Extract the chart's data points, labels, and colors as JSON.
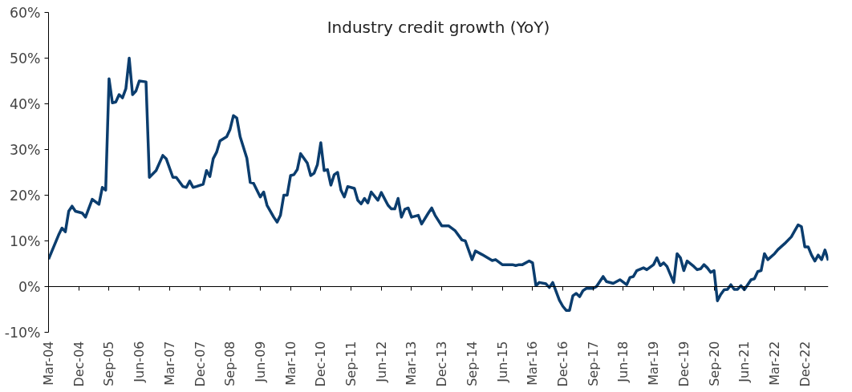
{
  "chart_data": {
    "type": "line",
    "title": "Industry credit growth (YoY)",
    "x": [
      "2004-03",
      "2004-06",
      "2004-07",
      "2004-08",
      "2004-09",
      "2004-10",
      "2004-11",
      "2005-01",
      "2005-02",
      "2005-04",
      "2005-06",
      "2005-07",
      "2005-08",
      "2005-09",
      "2005-10",
      "2005-11",
      "2005-12",
      "2006-01",
      "2006-02",
      "2006-03",
      "2006-04",
      "2006-05",
      "2006-06",
      "2006-08",
      "2006-09",
      "2006-11",
      "2007-01",
      "2007-02",
      "2007-04",
      "2007-05",
      "2007-07",
      "2007-08",
      "2007-09",
      "2007-10",
      "2007-11",
      "2008-01",
      "2008-02",
      "2008-03",
      "2008-04",
      "2008-05",
      "2008-06",
      "2008-08",
      "2008-09",
      "2008-10",
      "2008-11",
      "2008-12",
      "2009-02",
      "2009-03",
      "2009-04",
      "2009-06",
      "2009-07",
      "2009-08",
      "2009-10",
      "2009-11",
      "2009-12",
      "2010-01",
      "2010-02",
      "2010-03",
      "2010-04",
      "2010-05",
      "2010-06",
      "2010-08",
      "2010-09",
      "2010-10",
      "2010-11",
      "2010-12",
      "2011-01",
      "2011-02",
      "2011-03",
      "2011-04",
      "2011-05",
      "2011-06",
      "2011-07",
      "2011-08",
      "2011-10",
      "2011-11",
      "2011-12",
      "2012-01",
      "2012-02",
      "2012-03",
      "2012-05",
      "2012-06",
      "2012-08",
      "2012-09",
      "2012-10",
      "2012-11",
      "2012-12",
      "2013-01",
      "2013-02",
      "2013-03",
      "2013-05",
      "2013-06",
      "2013-08",
      "2013-09",
      "2013-10",
      "2013-12",
      "2014-02",
      "2014-04",
      "2014-06",
      "2014-07",
      "2014-09",
      "2014-10",
      "2014-12",
      "2015-03",
      "2015-04",
      "2015-06",
      "2015-09",
      "2015-10",
      "2015-11",
      "2015-12",
      "2016-02",
      "2016-03",
      "2016-04",
      "2016-05",
      "2016-07",
      "2016-08",
      "2016-09",
      "2016-11",
      "2016-12",
      "2017-01",
      "2017-02",
      "2017-03",
      "2017-04",
      "2017-05",
      "2017-06",
      "2017-07",
      "2017-09",
      "2017-10",
      "2017-12",
      "2018-01",
      "2018-03",
      "2018-05",
      "2018-07",
      "2018-08",
      "2018-09",
      "2018-10",
      "2018-12",
      "2019-01",
      "2019-03",
      "2019-04",
      "2019-05",
      "2019-06",
      "2019-07",
      "2019-09",
      "2019-10",
      "2019-11",
      "2019-12",
      "2020-01",
      "2020-03",
      "2020-04",
      "2020-05",
      "2020-06",
      "2020-07",
      "2020-08",
      "2020-09",
      "2020-10",
      "2020-11",
      "2020-12",
      "2021-01",
      "2021-02",
      "2021-03",
      "2021-04",
      "2021-05",
      "2021-06",
      "2021-07",
      "2021-08",
      "2021-09",
      "2021-10",
      "2021-11",
      "2021-12",
      "2022-01",
      "2022-03",
      "2022-04",
      "2022-06",
      "2022-08",
      "2022-09",
      "2022-10",
      "2022-11",
      "2022-12",
      "2023-01",
      "2023-02",
      "2023-03",
      "2023-04",
      "2023-05",
      "2023-06",
      "2023-07"
    ],
    "series": [
      {
        "color": "#0b3d6e",
        "values": [
          6.0,
          11.3,
          12.8,
          12.0,
          16.5,
          17.6,
          16.5,
          16.1,
          15.2,
          19.1,
          18.0,
          21.7,
          21.1,
          45.5,
          40.2,
          40.4,
          42.0,
          41.3,
          43.3,
          50.0,
          42.0,
          42.8,
          45.0,
          44.8,
          23.9,
          25.4,
          28.7,
          28.0,
          23.9,
          23.9,
          21.9,
          21.7,
          23.1,
          21.7,
          21.9,
          22.4,
          25.4,
          24.1,
          28.0,
          29.4,
          31.9,
          32.8,
          34.4,
          37.4,
          36.9,
          32.8,
          28.1,
          22.8,
          22.6,
          19.6,
          20.7,
          17.8,
          15.2,
          14.1,
          15.6,
          20.0,
          20.0,
          24.3,
          24.5,
          25.6,
          29.1,
          27.0,
          24.3,
          24.8,
          26.7,
          31.5,
          25.4,
          25.6,
          22.2,
          24.5,
          25.0,
          21.1,
          19.6,
          21.9,
          21.5,
          18.9,
          18.1,
          19.3,
          18.3,
          20.7,
          18.9,
          20.6,
          17.8,
          17.0,
          17.0,
          19.3,
          15.2,
          16.9,
          17.2,
          15.2,
          15.6,
          13.7,
          16.1,
          17.2,
          15.6,
          13.3,
          13.3,
          12.2,
          10.2,
          10.0,
          5.9,
          7.8,
          7.0,
          5.7,
          5.9,
          4.8,
          4.8,
          4.6,
          4.8,
          4.8,
          5.6,
          5.2,
          0.2,
          0.9,
          0.6,
          -0.2,
          0.9,
          -3.0,
          -4.3,
          -5.2,
          -5.2,
          -2.0,
          -1.5,
          -2.2,
          -0.9,
          -0.4,
          -0.4,
          0.0,
          2.2,
          1.1,
          0.7,
          1.5,
          0.4,
          2.0,
          2.2,
          3.5,
          4.1,
          3.7,
          4.8,
          6.3,
          4.6,
          5.2,
          4.4,
          0.9,
          7.2,
          6.3,
          3.5,
          5.6,
          4.4,
          3.7,
          3.9,
          4.8,
          4.1,
          3.1,
          3.5,
          -3.1,
          -1.7,
          -0.7,
          -0.6,
          0.4,
          -0.6,
          -0.6,
          0.2,
          -0.7,
          0.4,
          1.5,
          1.7,
          3.3,
          3.5,
          7.2,
          5.9,
          7.2,
          8.1,
          9.4,
          10.9,
          12.2,
          13.5,
          13.1,
          8.7,
          8.7,
          6.9,
          5.6,
          6.9,
          5.9,
          8.0,
          5.7
        ]
      }
    ],
    "xlim": [
      "2004-03",
      "2023-07"
    ],
    "xticks": [
      {
        "value": "2004-03",
        "label": "Mar-04"
      },
      {
        "value": "2004-12",
        "label": "Dec-04"
      },
      {
        "value": "2005-09",
        "label": "Sep-05"
      },
      {
        "value": "2006-06",
        "label": "Jun-06"
      },
      {
        "value": "2007-03",
        "label": "Mar-07"
      },
      {
        "value": "2007-12",
        "label": "Dec-07"
      },
      {
        "value": "2008-09",
        "label": "Sep-08"
      },
      {
        "value": "2009-06",
        "label": "Jun-09"
      },
      {
        "value": "2010-03",
        "label": "Mar-10"
      },
      {
        "value": "2010-12",
        "label": "Dec-10"
      },
      {
        "value": "2011-09",
        "label": "Sep-11"
      },
      {
        "value": "2012-06",
        "label": "Jun-12"
      },
      {
        "value": "2013-03",
        "label": "Mar-13"
      },
      {
        "value": "2013-12",
        "label": "Dec-13"
      },
      {
        "value": "2014-09",
        "label": "Sep-14"
      },
      {
        "value": "2015-06",
        "label": "Jun-15"
      },
      {
        "value": "2016-03",
        "label": "Mar-16"
      },
      {
        "value": "2016-12",
        "label": "Dec-16"
      },
      {
        "value": "2017-09",
        "label": "Sep-17"
      },
      {
        "value": "2018-06",
        "label": "Jun-18"
      },
      {
        "value": "2019-03",
        "label": "Mar-19"
      },
      {
        "value": "2019-12",
        "label": "Dec-19"
      },
      {
        "value": "2020-09",
        "label": "Sep-20"
      },
      {
        "value": "2021-06",
        "label": "Jun-21"
      },
      {
        "value": "2022-03",
        "label": "Mar-22"
      },
      {
        "value": "2022-12",
        "label": "Dec-22"
      }
    ],
    "ylim": [
      -10,
      60
    ],
    "yticks": [
      {
        "value": -10,
        "label": "-10%"
      },
      {
        "value": 0,
        "label": "0%"
      },
      {
        "value": 10,
        "label": "10%"
      },
      {
        "value": 20,
        "label": "20%"
      },
      {
        "value": 30,
        "label": "30%"
      },
      {
        "value": 40,
        "label": "40%"
      },
      {
        "value": 50,
        "label": "50%"
      },
      {
        "value": 60,
        "label": "60%"
      }
    ],
    "marker": "none",
    "line_style": "solid"
  }
}
